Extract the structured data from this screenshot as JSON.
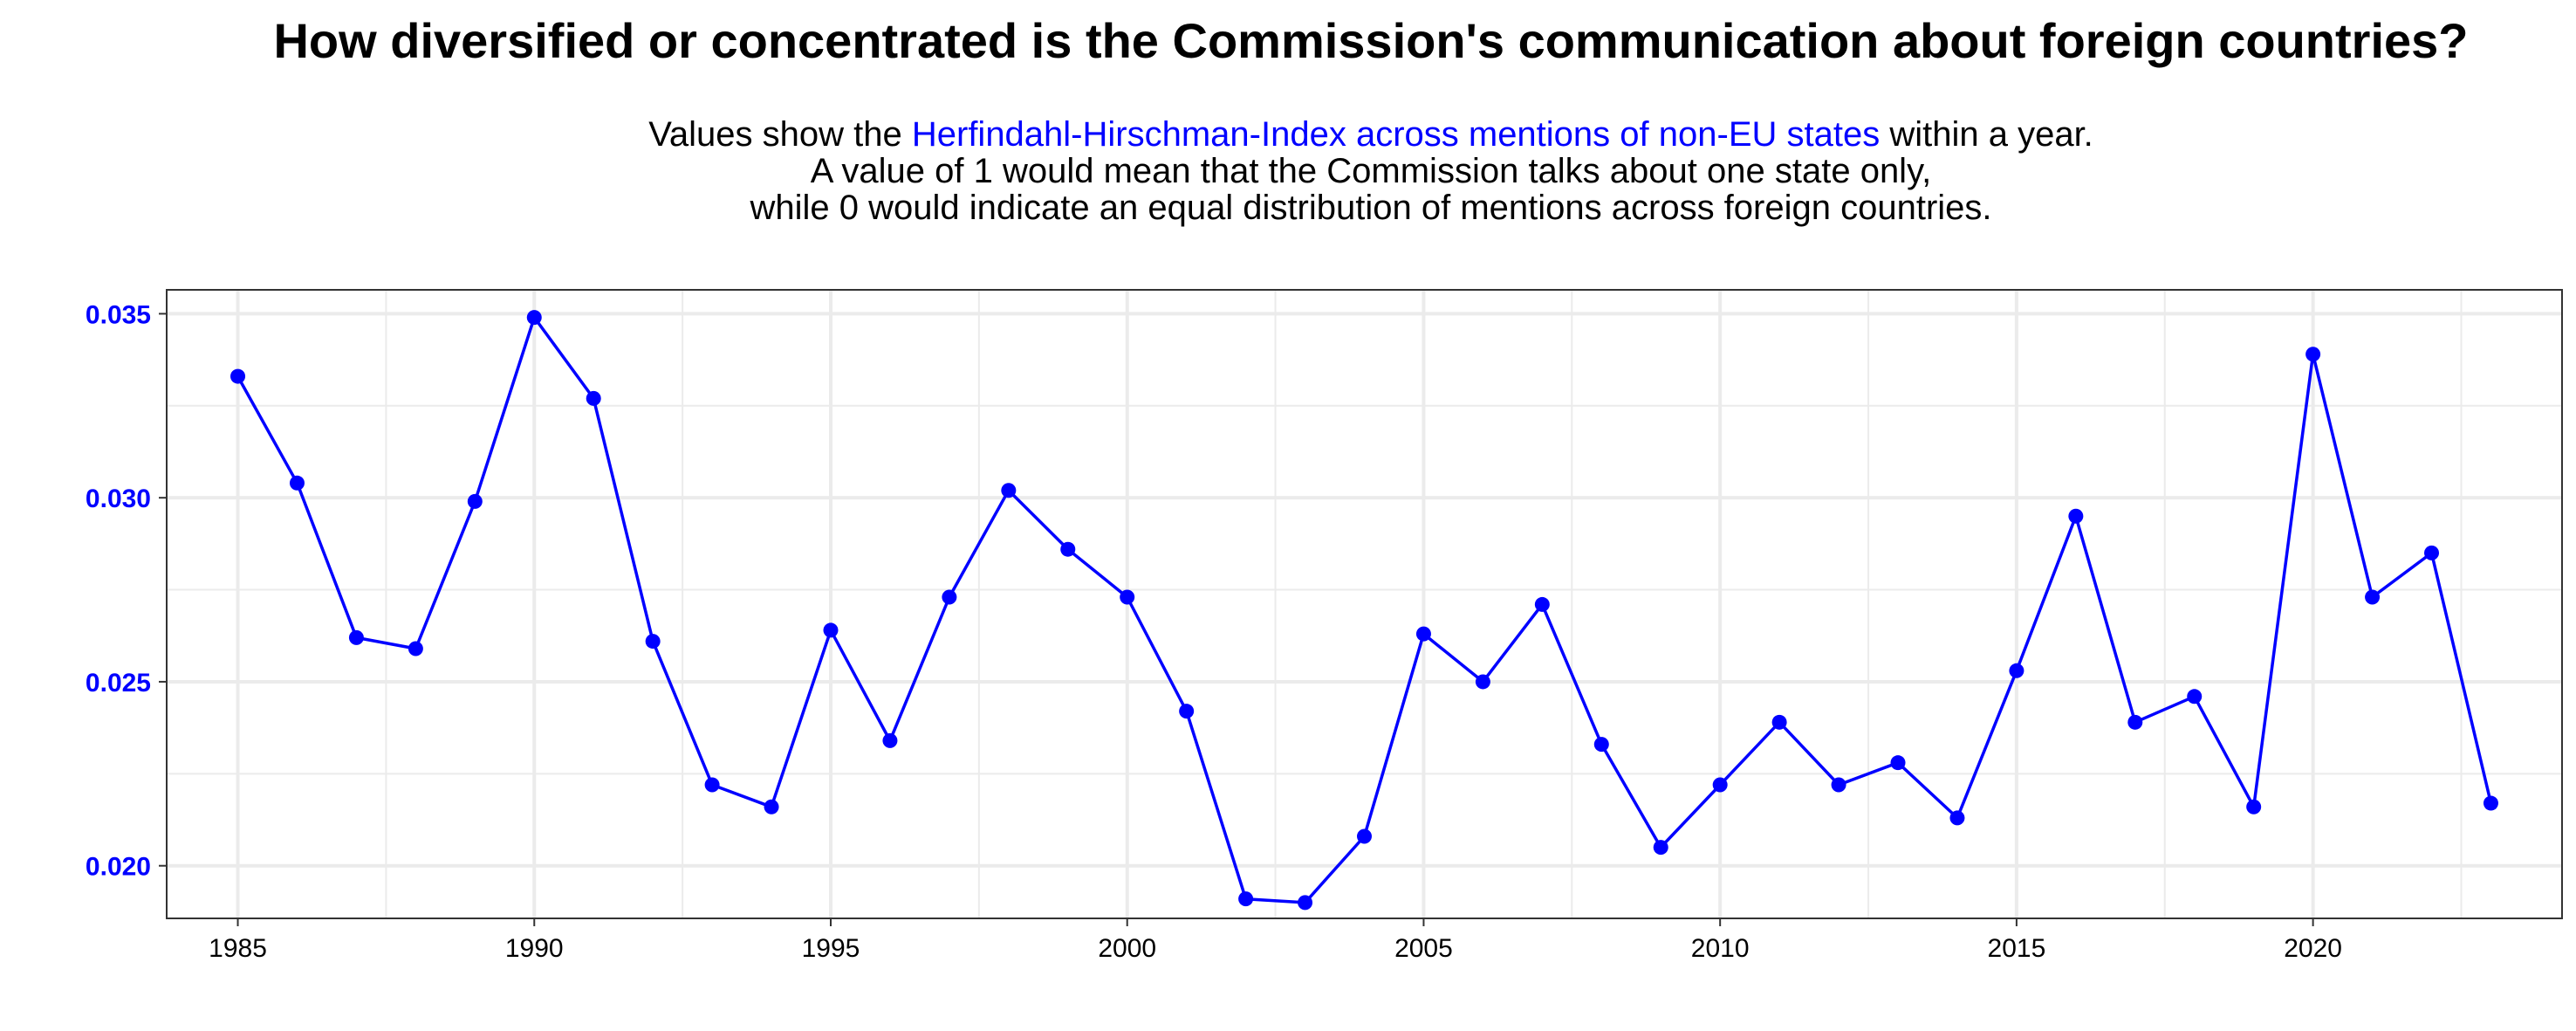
{
  "title": "How diversified or concentrated is the Commission's communication about foreign countries?",
  "subtitle": {
    "line1_before": "Values show the ",
    "line1_highlight": "Herfindahl-Hirschman-Index across mentions of non-EU states",
    "line1_after": " within a year.",
    "line2": "A value of 1 would mean that the Commission talks about one state only,",
    "line3": "while 0 would indicate an equal distribution of mentions across foreign countries."
  },
  "colors": {
    "series": "#0000ff",
    "highlight": "#0000ff",
    "grid": "#ebebeb",
    "border": "#333333"
  },
  "chart_data": {
    "type": "line",
    "title": "How diversified or concentrated is the Commission's communication about foreign countries?",
    "xlabel": "",
    "ylabel": "",
    "x": [
      1985,
      1986,
      1987,
      1988,
      1989,
      1990,
      1991,
      1992,
      1993,
      1994,
      1995,
      1996,
      1997,
      1998,
      1999,
      2000,
      2001,
      2002,
      2003,
      2004,
      2005,
      2006,
      2007,
      2008,
      2009,
      2010,
      2011,
      2012,
      2013,
      2014,
      2015,
      2016,
      2017,
      2018,
      2019,
      2020,
      2021,
      2022,
      2023
    ],
    "series": [
      {
        "values": [
          0.0333,
          0.0304,
          0.0262,
          0.0259,
          0.0299,
          0.0349,
          0.0327,
          0.0261,
          0.0222,
          0.0216,
          0.0264,
          0.0234,
          0.0273,
          0.0302,
          0.0286,
          0.0273,
          0.0242,
          0.0191,
          0.019,
          0.0208,
          0.0263,
          0.025,
          0.0271,
          0.0233,
          0.0205,
          0.0222,
          0.0239,
          0.0222,
          0.0228,
          0.0213,
          0.0253,
          0.0295,
          0.0239,
          0.0246,
          0.0216,
          0.0339,
          0.0273,
          0.0285,
          0.0217
        ]
      }
    ],
    "xlim": [
      1983.8,
      2024.2
    ],
    "ylim": [
      0.01857,
      0.03565
    ],
    "x_ticks": [
      "1985",
      "1990",
      "1995",
      "2000",
      "2005",
      "2010",
      "2015",
      "2020"
    ],
    "y_ticks": [
      "0.020",
      "0.025",
      "0.030",
      "0.035"
    ],
    "grid": true,
    "legend": "none"
  }
}
